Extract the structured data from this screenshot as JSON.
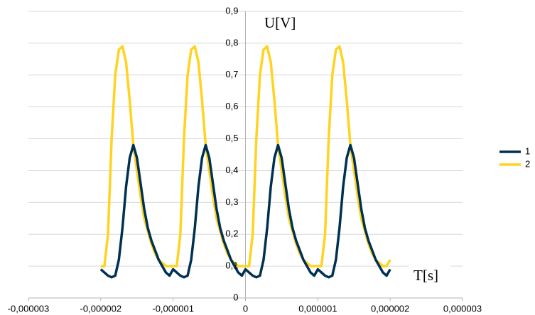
{
  "chart_data": {
    "type": "line",
    "x_label": "T[s]",
    "y_label": "U[V]",
    "x": [
      -2e-06,
      -1.95e-06,
      -1.9e-06,
      -1.85e-06,
      -1.8e-06,
      -1.75e-06,
      -1.7e-06,
      -1.65e-06,
      -1.6e-06,
      -1.55e-06,
      -1.5e-06,
      -1.45e-06,
      -1.4e-06,
      -1.35e-06,
      -1.3e-06,
      -1.25e-06,
      -1.2e-06,
      -1.15e-06,
      -1.1e-06,
      -1.05e-06,
      -1e-06,
      -9.5e-07,
      -9e-07,
      -8.5e-07,
      -8e-07,
      -7.5e-07,
      -7e-07,
      -6.5e-07,
      -6e-07,
      -5.5e-07,
      -5e-07,
      -4.5e-07,
      -4e-07,
      -3.5e-07,
      -3e-07,
      -2.5e-07,
      -2e-07,
      -1.5e-07,
      -1e-07,
      -5e-08,
      0,
      5e-08,
      1e-07,
      1.5e-07,
      2e-07,
      2.5e-07,
      3e-07,
      3.5e-07,
      4e-07,
      4.5e-07,
      5e-07,
      5.5e-07,
      6e-07,
      6.5e-07,
      7e-07,
      7.5e-07,
      8e-07,
      8.5e-07,
      9e-07,
      9.5e-07,
      1e-06,
      1.05e-06,
      1.1e-06,
      1.15e-06,
      1.2e-06,
      1.25e-06,
      1.3e-06,
      1.35e-06,
      1.4e-06,
      1.45e-06,
      1.5e-06,
      1.55e-06,
      1.6e-06,
      1.65e-06,
      1.7e-06,
      1.75e-06,
      1.8e-06,
      1.85e-06,
      1.9e-06,
      1.95e-06,
      2e-06
    ],
    "series": [
      {
        "name": "1",
        "color": "#003152",
        "values": [
          0.09,
          0.08,
          0.07,
          0.065,
          0.07,
          0.12,
          0.22,
          0.35,
          0.44,
          0.48,
          0.44,
          0.36,
          0.28,
          0.22,
          0.18,
          0.15,
          0.12,
          0.1,
          0.08,
          0.07,
          0.09,
          0.08,
          0.07,
          0.065,
          0.07,
          0.12,
          0.22,
          0.35,
          0.44,
          0.48,
          0.44,
          0.36,
          0.28,
          0.22,
          0.18,
          0.15,
          0.12,
          0.1,
          0.08,
          0.07,
          0.09,
          0.08,
          0.07,
          0.065,
          0.07,
          0.12,
          0.22,
          0.35,
          0.44,
          0.48,
          0.44,
          0.36,
          0.28,
          0.22,
          0.18,
          0.15,
          0.12,
          0.1,
          0.08,
          0.07,
          0.09,
          0.08,
          0.07,
          0.065,
          0.07,
          0.12,
          0.22,
          0.35,
          0.44,
          0.48,
          0.44,
          0.36,
          0.28,
          0.22,
          0.18,
          0.15,
          0.12,
          0.1,
          0.08,
          0.07,
          0.09
        ]
      },
      {
        "name": "2",
        "color": "#ffd320",
        "values": [
          0.1,
          0.1,
          0.2,
          0.5,
          0.7,
          0.78,
          0.79,
          0.74,
          0.62,
          0.48,
          0.4,
          0.32,
          0.25,
          0.21,
          0.17,
          0.14,
          0.12,
          0.11,
          0.1,
          0.1,
          0.1,
          0.1,
          0.2,
          0.5,
          0.7,
          0.78,
          0.79,
          0.74,
          0.62,
          0.48,
          0.4,
          0.32,
          0.25,
          0.21,
          0.17,
          0.14,
          0.12,
          0.11,
          0.1,
          0.1,
          0.1,
          0.1,
          0.2,
          0.5,
          0.7,
          0.78,
          0.79,
          0.74,
          0.62,
          0.48,
          0.4,
          0.32,
          0.25,
          0.21,
          0.17,
          0.14,
          0.12,
          0.11,
          0.1,
          0.1,
          0.1,
          0.1,
          0.2,
          0.5,
          0.7,
          0.78,
          0.79,
          0.74,
          0.62,
          0.48,
          0.4,
          0.32,
          0.25,
          0.21,
          0.17,
          0.14,
          0.12,
          0.11,
          0.1,
          0.1,
          0.12
        ]
      }
    ],
    "xlim": [
      -3e-06,
      3e-06
    ],
    "xticks": [
      {
        "value": -3e-06,
        "label": "-0,000003"
      },
      {
        "value": -2e-06,
        "label": "-0,000002"
      },
      {
        "value": -1e-06,
        "label": "-0,000001"
      },
      0,
      {
        "value": 1e-06,
        "label": "0,000001"
      },
      {
        "value": 2e-06,
        "label": "0,000002"
      },
      {
        "value": 3e-06,
        "label": "0,000003"
      }
    ],
    "ylim": [
      0,
      0.9
    ],
    "yticks": [
      0,
      {
        "value": 0.1,
        "label": "0,1"
      },
      {
        "value": 0.2,
        "label": "0,2"
      },
      {
        "value": 0.3,
        "label": "0,3"
      },
      {
        "value": 0.4,
        "label": "0,4"
      },
      {
        "value": 0.5,
        "label": "0,5"
      },
      {
        "value": 0.6,
        "label": "0,6"
      },
      {
        "value": 0.7,
        "label": "0,7"
      },
      {
        "value": 0.8,
        "label": "0,8"
      },
      {
        "value": 0.9,
        "label": "0,9"
      }
    ],
    "grid": true,
    "legend": "right"
  }
}
